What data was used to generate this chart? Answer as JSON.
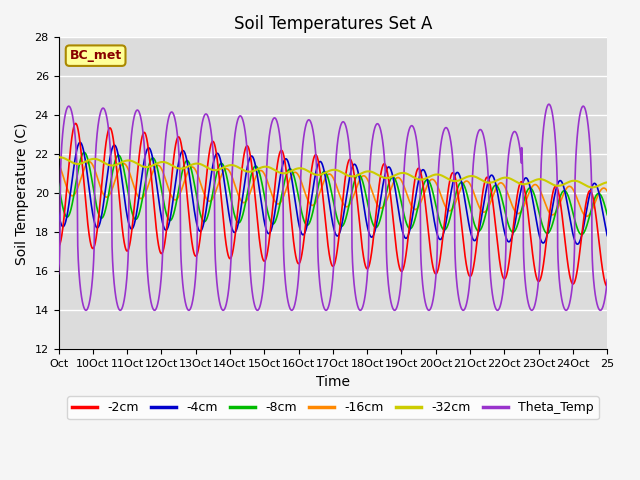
{
  "title": "Soil Temperatures Set A",
  "xlabel": "Time",
  "ylabel": "Soil Temperature (C)",
  "ylim": [
    12,
    28
  ],
  "xlim": [
    0,
    16
  ],
  "xtick_positions": [
    0,
    1,
    2,
    3,
    4,
    5,
    6,
    7,
    8,
    9,
    10,
    11,
    12,
    13,
    14,
    15,
    16
  ],
  "xtick_labels": [
    "Oct",
    "10Oct",
    "11Oct",
    "12Oct",
    "13Oct",
    "14Oct",
    "15Oct",
    "16Oct",
    "17Oct",
    "18Oct",
    "19Oct",
    "20Oct",
    "21Oct",
    "22Oct",
    "23Oct",
    "24Oct",
    "25"
  ],
  "ytick_positions": [
    12,
    14,
    16,
    18,
    20,
    22,
    24,
    26,
    28
  ],
  "legend_entries": [
    "-2cm",
    "-4cm",
    "-8cm",
    "-16cm",
    "-32cm",
    "Theta_Temp"
  ],
  "colors": {
    "-2cm": "#ff0000",
    "-4cm": "#0000cc",
    "-8cm": "#00bb00",
    "-16cm": "#ff8800",
    "-32cm": "#cccc00",
    "Theta_Temp": "#9933cc"
  },
  "annotation_text": "BC_met",
  "annotation_facecolor": "#ffff99",
  "annotation_edgecolor": "#aa8800",
  "annotation_textcolor": "#880000",
  "background_color": "#dcdcdc",
  "fig_background": "#f5f5f5",
  "grid_color": "#ffffff",
  "title_fontsize": 12,
  "tick_fontsize": 8,
  "label_fontsize": 10
}
